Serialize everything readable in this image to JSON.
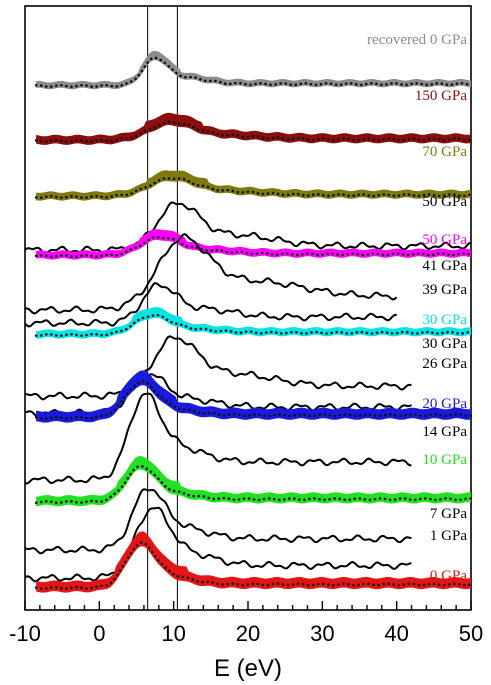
{
  "chart_data": {
    "type": "line",
    "title": "",
    "xlabel": "E (eV)",
    "ylabel": "",
    "xlim": [
      -10,
      50
    ],
    "x_ticks": [
      -10,
      0,
      10,
      20,
      30,
      40,
      50
    ],
    "x_tick_labels": [
      "-10",
      "0",
      "10",
      "20",
      "30",
      "40",
      "50"
    ],
    "y_ticks_shown": false,
    "reference_lines_x": [
      6.5,
      10.5
    ],
    "series": [
      {
        "name": "recovered 0 GPa",
        "kind": "band",
        "color": "#8c8c8c",
        "offset": 56,
        "xstart": -8.5,
        "xend": 50,
        "amp": 24,
        "peak": 7.5,
        "width": 1.6,
        "shoulder": 4,
        "tail": 0.08,
        "band": 7
      },
      {
        "name": "150 GPa",
        "kind": "band",
        "color": "#8b0e0e",
        "offset": 111,
        "xstart": -8.5,
        "xend": 50,
        "amp": 15,
        "peak": 9.5,
        "width": 3.0,
        "shoulder": 6,
        "tail": 0.1,
        "band": 9
      },
      {
        "name": "70 GPa",
        "kind": "band",
        "color": "#7f7a10",
        "offset": 167,
        "xstart": -8.5,
        "xend": 50,
        "amp": 15,
        "peak": 9.5,
        "width": 3.0,
        "shoulder": 6,
        "tail": 0.12,
        "band": 8
      },
      {
        "name": "50 GPa",
        "kind": "line",
        "color": "#000000",
        "offset": 220,
        "xstart": -10,
        "xend": 50,
        "amp": 40,
        "peak": 10.5,
        "width": 2.8,
        "shoulder": 8,
        "tail": 0.1,
        "band": 0
      },
      {
        "name": "50 GPa",
        "kind": "band",
        "color": "#ff00ff",
        "offset": 226,
        "xstart": -8.5,
        "xend": 50,
        "amp": 15,
        "peak": 8.0,
        "width": 2.5,
        "shoulder": 5,
        "tail": 0.12,
        "band": 8
      },
      {
        "name": "41 GPa",
        "kind": "line",
        "color": "#000000",
        "offset": 280,
        "xstart": -10,
        "xend": 40,
        "amp": 55,
        "peak": 11.0,
        "width": 3.5,
        "shoulder": 10,
        "tail": 0.25,
        "band": 0
      },
      {
        "name": "39 GPa",
        "kind": "line",
        "color": "#000000",
        "offset": 293,
        "xstart": -10,
        "xend": 40,
        "amp": 30,
        "peak": 8.0,
        "width": 2.2,
        "shoulder": 6,
        "tail": 0.2,
        "band": 0
      },
      {
        "name": "30 GPa",
        "kind": "band",
        "color": "#00e5e5",
        "offset": 305,
        "xstart": -8.5,
        "xend": 50,
        "amp": 15,
        "peak": 7.0,
        "width": 2.3,
        "shoulder": 4,
        "tail": 0.15,
        "band": 8
      },
      {
        "name": "30 GPa",
        "kind": "line",
        "color": "#000000",
        "offset": 366,
        "xstart": -10,
        "xend": 42,
        "amp": 45,
        "peak": 10.0,
        "width": 3.0,
        "shoulder": 8,
        "tail": 0.22,
        "band": 0
      },
      {
        "name": "26 GPa",
        "kind": "line",
        "color": "#000000",
        "offset": 383,
        "xstart": -10,
        "xend": 42,
        "amp": 30,
        "peak": 6.5,
        "width": 2.2,
        "shoulder": 5,
        "tail": 0.2,
        "band": 0
      },
      {
        "name": "20 GPa",
        "kind": "band",
        "color": "#1a1adc",
        "offset": 388,
        "xstart": -8.5,
        "xend": 50,
        "amp": 28,
        "peak": 5.5,
        "width": 2.0,
        "shoulder": 3,
        "tail": 0.1,
        "band": 11
      },
      {
        "name": "14 GPa",
        "kind": "line",
        "color": "#000000",
        "offset": 450,
        "xstart": -10,
        "xend": 42,
        "amp": 60,
        "peak": 6.0,
        "width": 2.0,
        "shoulder": 4,
        "tail": 0.3,
        "band": 0
      },
      {
        "name": "10 GPa",
        "kind": "band",
        "color": "#22e022",
        "offset": 472,
        "xstart": -8.5,
        "xend": 50,
        "amp": 28,
        "peak": 5.5,
        "width": 1.9,
        "shoulder": 3,
        "tail": 0.1,
        "band": 10
      },
      {
        "name": "7 GPa",
        "kind": "line",
        "color": "#000000",
        "offset": 520,
        "xstart": -10,
        "xend": 42,
        "amp": 45,
        "peak": 6.5,
        "width": 2.0,
        "shoulder": 4,
        "tail": 0.25,
        "band": 0
      },
      {
        "name": "1 GPa",
        "kind": "line",
        "color": "#000000",
        "offset": 548,
        "xstart": -10,
        "xend": 42,
        "amp": 50,
        "peak": 7.0,
        "width": 2.2,
        "shoulder": 4,
        "tail": 0.25,
        "band": 0
      },
      {
        "name": "0 GPa",
        "kind": "band",
        "color": "#e41515",
        "offset": 558,
        "xstart": -8.5,
        "xend": 50,
        "amp": 35,
        "peak": 5.5,
        "width": 1.9,
        "shoulder": 3,
        "tail": 0.1,
        "band": 11
      }
    ],
    "labels": [
      {
        "text": "recovered 0 GPa",
        "color": "#8c8c8c"
      },
      {
        "text": "150 GPa",
        "color": "#8b0e0e"
      },
      {
        "text": "70 GPa",
        "color": "#7f7a10"
      },
      {
        "text": "50 GPa",
        "color": "#000000"
      },
      {
        "text": "50 GPa",
        "color": "#ff00ff"
      },
      {
        "text": "41 GPa",
        "color": "#000000"
      },
      {
        "text": "39 GPa",
        "color": "#000000"
      },
      {
        "text": "30 GPa",
        "color": "#00e5e5"
      },
      {
        "text": "30 GPa",
        "color": "#000000"
      },
      {
        "text": "26 GPa",
        "color": "#000000"
      },
      {
        "text": "20 GPa",
        "color": "#1a1adc"
      },
      {
        "text": "14 GPa",
        "color": "#000000"
      },
      {
        "text": "10 GPa",
        "color": "#22e022"
      },
      {
        "text": "7 GPa",
        "color": "#000000"
      },
      {
        "text": "1 GPa",
        "color": "#000000"
      },
      {
        "text": "0 GPa",
        "color": "#e41515"
      }
    ]
  }
}
